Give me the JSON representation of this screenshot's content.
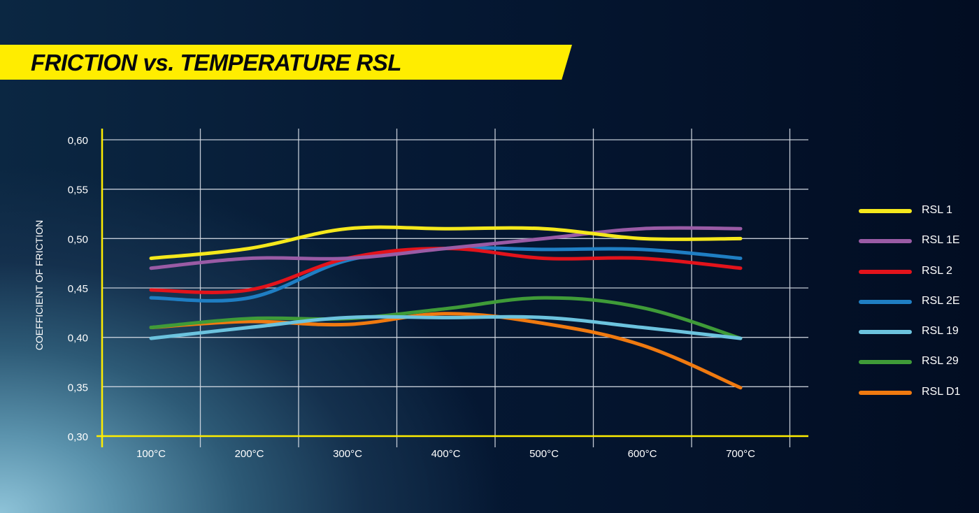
{
  "title": "FRICTION vs. TEMPERATURE RSL",
  "colors": {
    "accent": "#ffed00",
    "grid": "#d7dde6",
    "axis": "#ffed00",
    "text": "#ffffff"
  },
  "chart_data": {
    "type": "line",
    "title": "FRICTION vs. TEMPERATURE RSL",
    "xlabel": "",
    "ylabel": "COEFFICIENT OF FRICTION",
    "categories": [
      "100°C",
      "200°C",
      "300°C",
      "400°C",
      "500°C",
      "600°C",
      "700°C"
    ],
    "y_ticks": [
      "0,30",
      "0,35",
      "0,40",
      "0,45",
      "0,50",
      "0,55",
      "0,60"
    ],
    "ylim": [
      0.3,
      0.6
    ],
    "grid": true,
    "legend_position": "right",
    "series": [
      {
        "name": "RSL 1",
        "color": "#f5e81c",
        "values": [
          0.48,
          0.49,
          0.51,
          0.51,
          0.51,
          0.5,
          0.5
        ]
      },
      {
        "name": "RSL 1E",
        "color": "#9a5ba5",
        "values": [
          0.47,
          0.48,
          0.48,
          0.49,
          0.5,
          0.51,
          0.51
        ]
      },
      {
        "name": "RSL 2",
        "color": "#e3131b",
        "values": [
          0.448,
          0.448,
          0.48,
          0.49,
          0.48,
          0.48,
          0.47
        ]
      },
      {
        "name": "RSL 2E",
        "color": "#1f7ec3",
        "values": [
          0.44,
          0.44,
          0.478,
          0.49,
          0.489,
          0.489,
          0.48
        ]
      },
      {
        "name": "RSL 19",
        "color": "#6cc3de",
        "values": [
          0.399,
          0.41,
          0.42,
          0.42,
          0.42,
          0.41,
          0.399
        ]
      },
      {
        "name": "RSL 29",
        "color": "#3f9b38",
        "values": [
          0.41,
          0.419,
          0.419,
          0.429,
          0.44,
          0.43,
          0.399
        ]
      },
      {
        "name": "RSL D1",
        "color": "#f07a10",
        "values": [
          0.41,
          0.416,
          0.413,
          0.424,
          0.414,
          0.392,
          0.349
        ]
      }
    ]
  }
}
